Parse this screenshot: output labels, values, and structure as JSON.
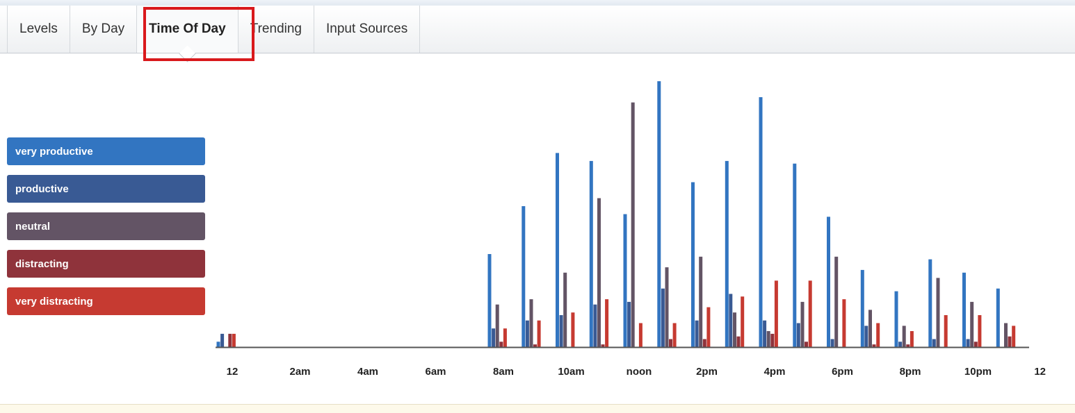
{
  "tabs": [
    {
      "label": "Levels",
      "active": false
    },
    {
      "label": "By Day",
      "active": false
    },
    {
      "label": "Time Of Day",
      "active": true
    },
    {
      "label": "Trending",
      "active": false
    },
    {
      "label": "Input Sources",
      "active": false
    }
  ],
  "colors": {
    "very_productive": "#3275c1",
    "productive": "#395a94",
    "neutral": "#635465",
    "distracting": "#8f333b",
    "very_distracting": "#c63a31",
    "highlight": "#d9191c"
  },
  "chart_data": {
    "type": "bar",
    "legend_placement": "left",
    "grid": false,
    "ylim": [
      0,
      100
    ],
    "x_tick_labels": [
      "12",
      "2am",
      "4am",
      "6am",
      "8am",
      "10am",
      "noon",
      "2pm",
      "4pm",
      "6pm",
      "8pm",
      "10pm",
      "12"
    ],
    "categories": [
      "0",
      "1",
      "2",
      "3",
      "4",
      "5",
      "6",
      "7",
      "8",
      "9",
      "10",
      "11",
      "12",
      "13",
      "14",
      "15",
      "16",
      "17",
      "18",
      "19",
      "20",
      "21",
      "22",
      "23"
    ],
    "series": [
      {
        "name": "very productive",
        "color": "#3275c1",
        "values": [
          2,
          0,
          0,
          0,
          0,
          0,
          0,
          0,
          35,
          53,
          73,
          70,
          50,
          100,
          62,
          70,
          94,
          69,
          49,
          29,
          21,
          33,
          28,
          22
        ]
      },
      {
        "name": "productive",
        "color": "#395a94",
        "values": [
          5,
          0,
          0,
          0,
          0,
          0,
          0,
          0,
          7,
          10,
          12,
          16,
          17,
          22,
          10,
          20,
          10,
          9,
          3,
          8,
          2,
          3,
          3,
          0
        ]
      },
      {
        "name": "neutral",
        "color": "#635465",
        "values": [
          0,
          0,
          0,
          0,
          0,
          0,
          0,
          0,
          16,
          18,
          28,
          56,
          92,
          30,
          34,
          13,
          6,
          17,
          34,
          14,
          8,
          26,
          17,
          9
        ]
      },
      {
        "name": "distracting",
        "color": "#8f333b",
        "values": [
          5,
          0,
          0,
          0,
          0,
          0,
          0,
          0,
          2,
          1,
          0,
          1,
          0,
          3,
          3,
          4,
          5,
          2,
          0,
          1,
          1,
          0,
          2,
          4
        ]
      },
      {
        "name": "very distracting",
        "color": "#c63a31",
        "values": [
          5,
          0,
          0,
          0,
          0,
          0,
          0,
          0,
          7,
          10,
          13,
          18,
          9,
          9,
          15,
          19,
          25,
          25,
          18,
          9,
          6,
          12,
          12,
          8
        ]
      }
    ]
  }
}
